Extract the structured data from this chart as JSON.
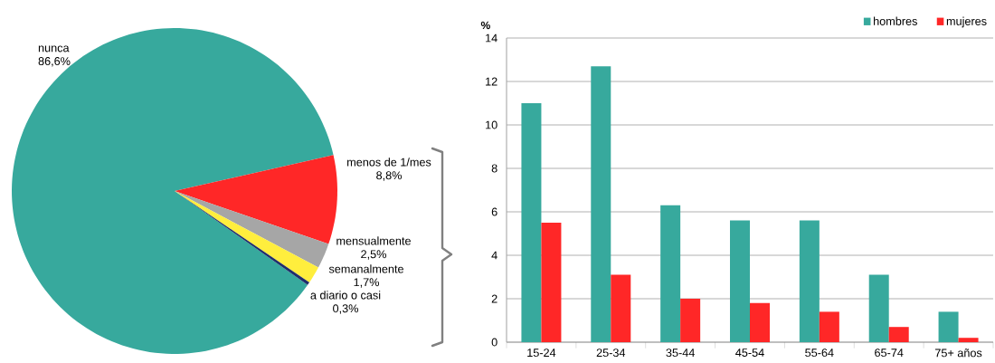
{
  "chart_data": [
    {
      "type": "pie",
      "categories": [
        "nunca",
        "menos de 1/mes",
        "mensualmente",
        "semanalmente",
        "a diario o casi"
      ],
      "values": [
        86.6,
        8.8,
        2.5,
        1.7,
        0.3
      ],
      "value_labels": [
        "86,6%",
        "8,8%",
        "2,5%",
        "1,7%",
        "0,3%"
      ],
      "colors": [
        "#37a99d",
        "#ff2727",
        "#a6a6a6",
        "#ffee3d",
        "#1f2e6b"
      ]
    },
    {
      "type": "bar",
      "ylabel": "%",
      "categories": [
        "15-24",
        "25-34",
        "35-44",
        "45-54",
        "55-64",
        "65-74",
        "75+ años"
      ],
      "series": [
        {
          "name": "hombres",
          "color": "#37a99d",
          "values": [
            11.0,
            12.7,
            6.3,
            5.6,
            5.6,
            3.1,
            1.4
          ]
        },
        {
          "name": "mujeres",
          "color": "#ff2727",
          "values": [
            5.5,
            3.1,
            2.0,
            1.8,
            1.4,
            0.7,
            0.2
          ]
        }
      ],
      "ylim": [
        0,
        14
      ],
      "yticks": [
        0,
        2,
        4,
        6,
        8,
        10,
        12,
        14
      ],
      "grid": "y",
      "legend": "top right"
    }
  ]
}
